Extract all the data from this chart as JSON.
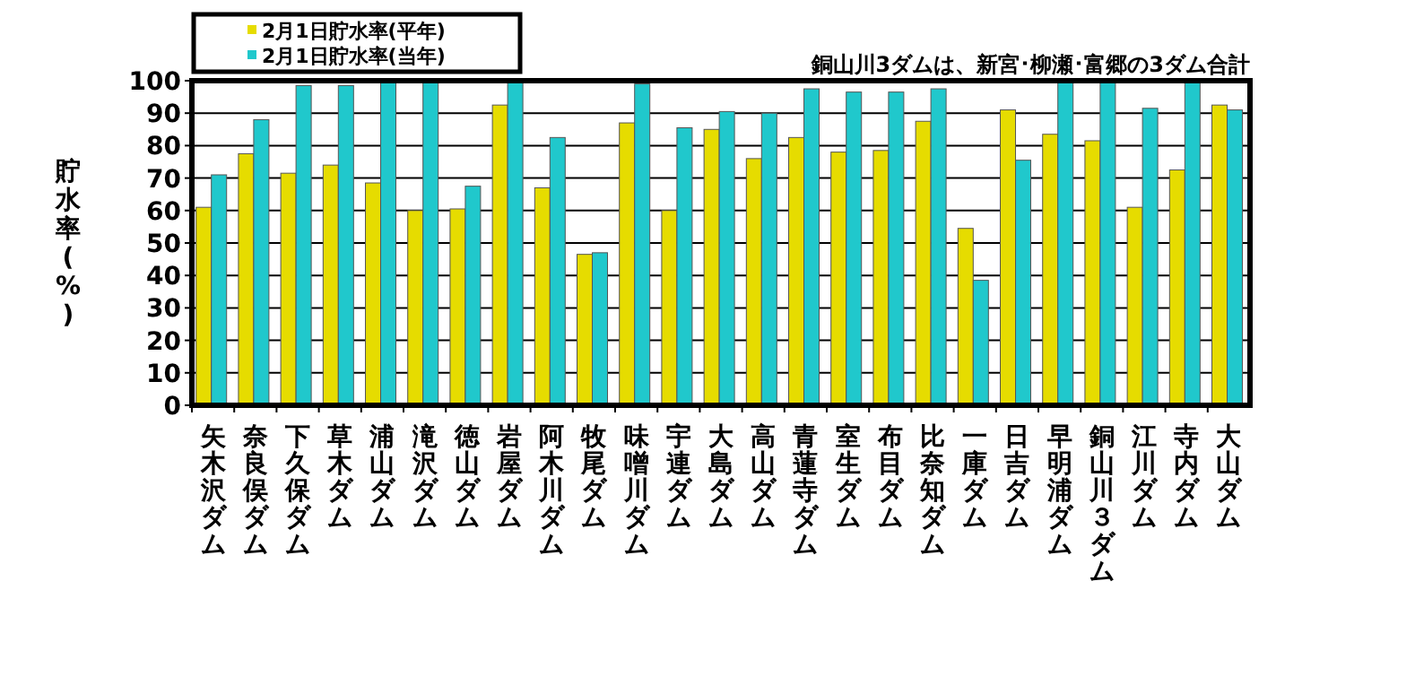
{
  "chart_data": {
    "type": "bar",
    "ylabel": "貯水率(%)",
    "categories": [
      "矢木沢ダム",
      "奈良俣ダム",
      "下久保ダム",
      "草木ダム",
      "浦山ダム",
      "滝沢ダム",
      "徳山ダム",
      "岩屋ダム",
      "阿木川ダム",
      "牧尾ダム",
      "味噌川ダム",
      "宇連ダム",
      "大島ダム",
      "高山ダム",
      "青蓮寺ダム",
      "室生ダム",
      "布目ダム",
      "比奈知ダム",
      "一庫ダム",
      "日吉ダム",
      "早明浦ダム",
      "銅山川３ダム",
      "江川ダム",
      "寺内ダム",
      "大山ダム"
    ],
    "series": [
      {
        "name": "2月1日貯水率(平年)",
        "color": "#e6dc00",
        "values": [
          61,
          77.5,
          71.5,
          74,
          68.5,
          60,
          60.5,
          92.5,
          67,
          46.5,
          87,
          60,
          85,
          76,
          82.5,
          78,
          78.5,
          87.5,
          54.5,
          91,
          83.5,
          81.5,
          61,
          72.5,
          92.5
        ]
      },
      {
        "name": "2月1日貯水率(当年)",
        "color": "#20c8cc",
        "values": [
          71,
          88,
          98.5,
          98.5,
          100,
          100,
          67.5,
          100,
          82.5,
          47,
          99,
          85.5,
          90.5,
          90,
          97.5,
          96.5,
          96.5,
          97.5,
          38.5,
          75.5,
          100,
          100,
          91.5,
          100,
          91
        ]
      }
    ],
    "ylim": [
      0,
      100
    ],
    "yticks": [
      0,
      10,
      20,
      30,
      40,
      50,
      60,
      70,
      80,
      90,
      100
    ],
    "grid": "y",
    "legend": "top left",
    "annotations": [
      "銅山川3ダムは、新宮･柳瀬･富郷の3ダム合計"
    ]
  }
}
